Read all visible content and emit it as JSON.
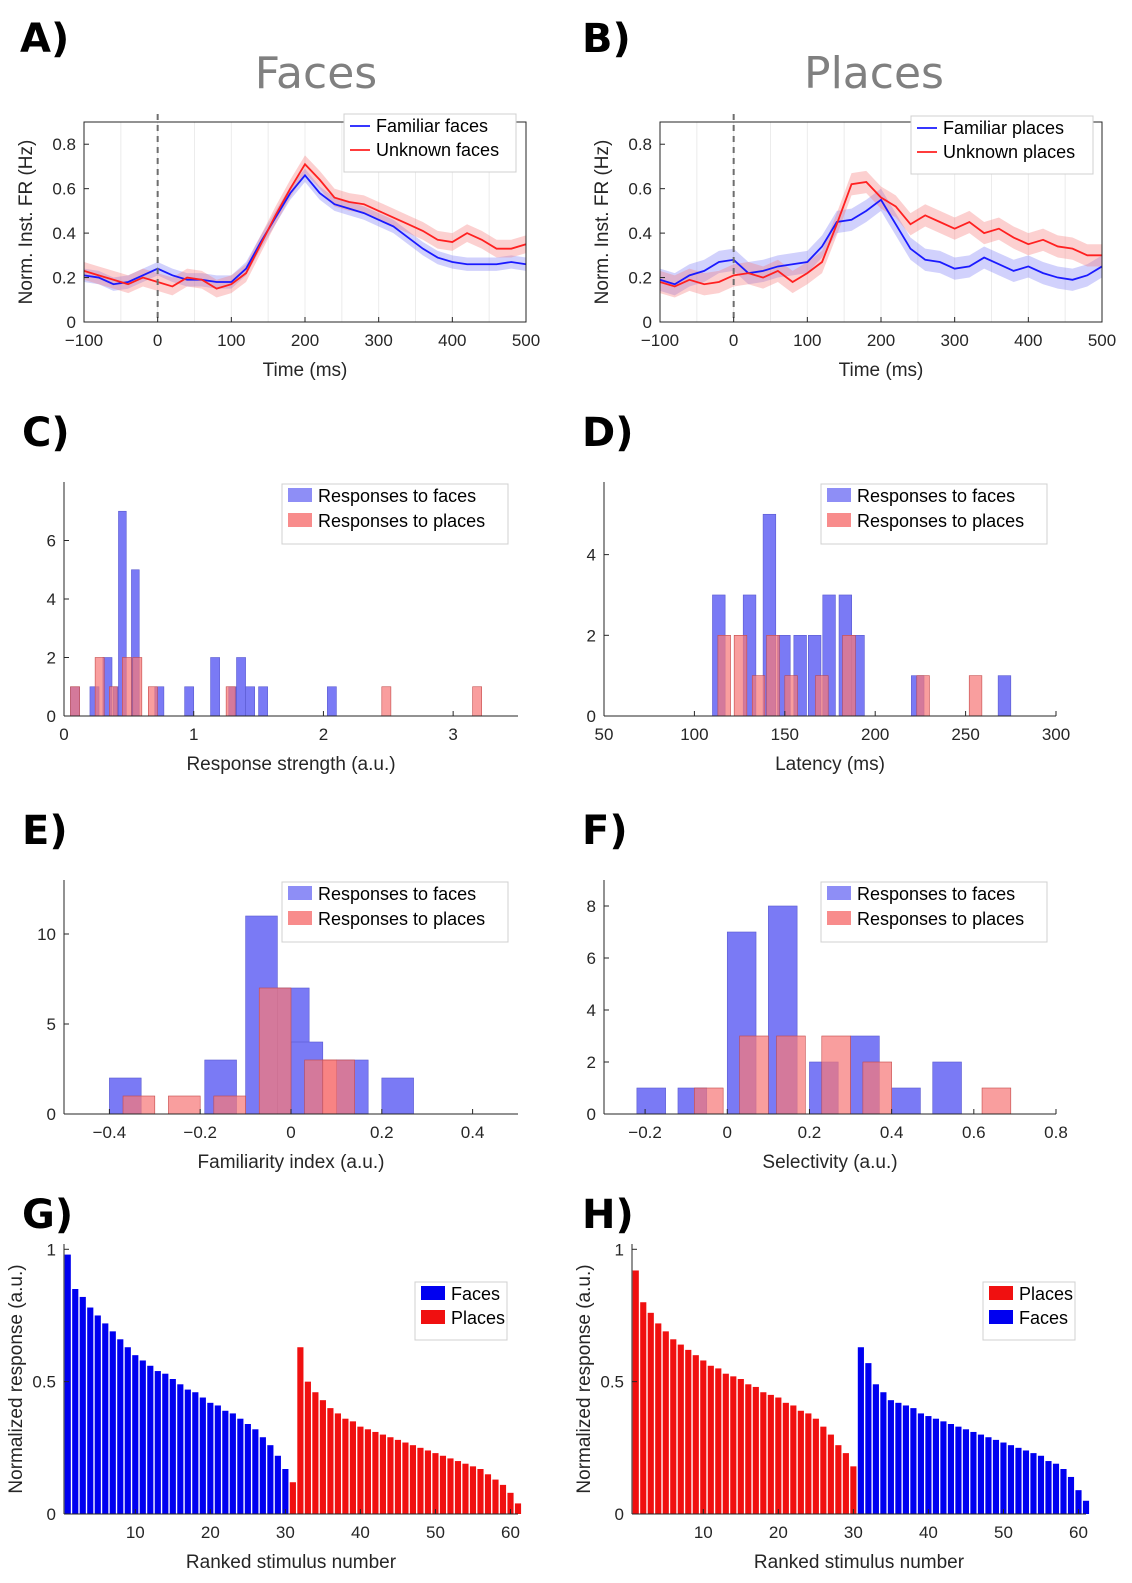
{
  "colors": {
    "familiar_line": "#1a1aff",
    "unknown_line": "#ff2020",
    "face_bar": "#7a7af5",
    "place_bar": "#f77878",
    "overlap_bar": "#a8467f",
    "faces_solid": "#0000f0",
    "places_solid": "#f01010",
    "blue_band": "#7a7af5",
    "red_band": "#f77878"
  },
  "chart_data": [
    {
      "panel": "A)",
      "type": "line",
      "title": "Faces",
      "xlabel": "Time (ms)",
      "ylabel": "Norm. Inst. FR (Hz)",
      "xlim": [
        -100,
        500
      ],
      "ylim": [
        0,
        0.9
      ],
      "xticks": [
        -100,
        0,
        100,
        200,
        300,
        400,
        500
      ],
      "yticks": [
        0,
        0.2,
        0.4,
        0.6,
        0.8
      ],
      "legend_position": "top-right",
      "x": [
        -100,
        -80,
        -60,
        -40,
        -20,
        0,
        20,
        40,
        60,
        80,
        100,
        120,
        140,
        160,
        180,
        200,
        220,
        240,
        260,
        280,
        300,
        320,
        340,
        360,
        380,
        400,
        420,
        440,
        460,
        480,
        500
      ],
      "series": [
        {
          "name": "Familiar  faces",
          "color_key": "familiar_line",
          "band_key": "blue_band",
          "band": 0.03,
          "values": [
            0.21,
            0.2,
            0.17,
            0.18,
            0.21,
            0.24,
            0.21,
            0.19,
            0.19,
            0.18,
            0.18,
            0.24,
            0.36,
            0.47,
            0.58,
            0.66,
            0.58,
            0.53,
            0.51,
            0.49,
            0.46,
            0.43,
            0.38,
            0.33,
            0.29,
            0.27,
            0.26,
            0.26,
            0.26,
            0.27,
            0.26
          ]
        },
        {
          "name": "Unknown faces",
          "color_key": "unknown_line",
          "band_key": "red_band",
          "band": 0.04,
          "values": [
            0.23,
            0.21,
            0.19,
            0.17,
            0.2,
            0.18,
            0.16,
            0.2,
            0.19,
            0.15,
            0.17,
            0.22,
            0.35,
            0.48,
            0.6,
            0.71,
            0.64,
            0.56,
            0.54,
            0.53,
            0.5,
            0.47,
            0.44,
            0.41,
            0.37,
            0.36,
            0.4,
            0.37,
            0.33,
            0.33,
            0.35
          ]
        }
      ]
    },
    {
      "panel": "B)",
      "type": "line",
      "title": "Places",
      "xlabel": "Time (ms)",
      "ylabel": "Norm. Inst. FR (Hz)",
      "xlim": [
        -100,
        500
      ],
      "ylim": [
        0,
        0.9
      ],
      "xticks": [
        -100,
        0,
        100,
        200,
        300,
        400,
        500
      ],
      "yticks": [
        0,
        0.2,
        0.4,
        0.6,
        0.8
      ],
      "legend_position": "top-right",
      "x": [
        -100,
        -80,
        -60,
        -40,
        -20,
        0,
        20,
        40,
        60,
        80,
        100,
        120,
        140,
        160,
        180,
        200,
        220,
        240,
        260,
        280,
        300,
        320,
        340,
        360,
        380,
        400,
        420,
        440,
        460,
        480,
        500
      ],
      "series": [
        {
          "name": "Familiar  places",
          "color_key": "familiar_line",
          "band_key": "blue_band",
          "band": 0.05,
          "values": [
            0.19,
            0.17,
            0.21,
            0.23,
            0.27,
            0.28,
            0.22,
            0.23,
            0.25,
            0.26,
            0.27,
            0.34,
            0.45,
            0.46,
            0.5,
            0.55,
            0.44,
            0.33,
            0.28,
            0.27,
            0.24,
            0.25,
            0.29,
            0.26,
            0.23,
            0.25,
            0.22,
            0.2,
            0.19,
            0.21,
            0.25
          ]
        },
        {
          "name": "Unknown places",
          "color_key": "unknown_line",
          "band_key": "red_band",
          "band": 0.05,
          "values": [
            0.18,
            0.16,
            0.19,
            0.17,
            0.18,
            0.21,
            0.22,
            0.2,
            0.23,
            0.18,
            0.22,
            0.27,
            0.44,
            0.62,
            0.63,
            0.56,
            0.52,
            0.44,
            0.48,
            0.45,
            0.42,
            0.45,
            0.4,
            0.42,
            0.38,
            0.35,
            0.37,
            0.34,
            0.33,
            0.3,
            0.3
          ]
        }
      ]
    },
    {
      "panel": "C)",
      "type": "histogram",
      "xlabel": "Response strength (a.u.)",
      "ylabel": "",
      "xlim": [
        0,
        3.5
      ],
      "ylim": [
        0,
        8.0
      ],
      "xticks": [
        0,
        1,
        2,
        3
      ],
      "yticks": [
        0,
        2,
        4,
        6
      ],
      "legend_position": "top-right",
      "series": [
        {
          "name": "Responses to faces",
          "color_key": "face_bar",
          "bins": [
            [
              0.05,
              0.12,
              1
            ],
            [
              0.2,
              0.27,
              1
            ],
            [
              0.3,
              0.37,
              2
            ],
            [
              0.38,
              0.44,
              1
            ],
            [
              0.42,
              0.48,
              7
            ],
            [
              0.52,
              0.58,
              5
            ],
            [
              0.7,
              0.77,
              1
            ],
            [
              0.93,
              1.0,
              1
            ],
            [
              1.13,
              1.2,
              2
            ],
            [
              1.27,
              1.33,
              1
            ],
            [
              1.33,
              1.4,
              2
            ],
            [
              1.4,
              1.47,
              1
            ],
            [
              1.5,
              1.57,
              1
            ],
            [
              2.03,
              2.1,
              1
            ]
          ]
        },
        {
          "name": "Responses to places",
          "color_key": "place_bar",
          "bins": [
            [
              0.05,
              0.12,
              1
            ],
            [
              0.24,
              0.31,
              2
            ],
            [
              0.35,
              0.41,
              1
            ],
            [
              0.45,
              0.52,
              2
            ],
            [
              0.53,
              0.6,
              2
            ],
            [
              0.65,
              0.72,
              1
            ],
            [
              1.25,
              1.32,
              1
            ],
            [
              2.45,
              2.52,
              1
            ],
            [
              3.15,
              3.22,
              1
            ]
          ]
        }
      ]
    },
    {
      "panel": "D)",
      "type": "histogram",
      "xlabel": "Latency (ms)",
      "ylabel": "",
      "xlim": [
        50,
        300
      ],
      "ylim": [
        0,
        5.8
      ],
      "xticks": [
        50,
        100,
        150,
        200,
        250,
        300
      ],
      "yticks": [
        0,
        2,
        4
      ],
      "legend_position": "top-right",
      "series": [
        {
          "name": "Responses to faces",
          "color_key": "face_bar",
          "bins": [
            [
              110,
              117,
              3
            ],
            [
              127,
              134,
              3
            ],
            [
              138,
              145,
              5
            ],
            [
              146,
              153,
              2
            ],
            [
              155,
              162,
              2
            ],
            [
              163,
              170,
              2
            ],
            [
              171,
              178,
              3
            ],
            [
              180,
              187,
              3
            ],
            [
              187,
              194,
              2
            ],
            [
              220,
              227,
              1
            ],
            [
              268,
              275,
              1
            ]
          ]
        },
        {
          "name": "Responses to places",
          "color_key": "place_bar",
          "bins": [
            [
              113,
              120,
              2
            ],
            [
              122,
              129,
              2
            ],
            [
              132,
              139,
              1
            ],
            [
              140,
              147,
              2
            ],
            [
              150,
              157,
              1
            ],
            [
              167,
              174,
              1
            ],
            [
              182,
              189,
              2
            ],
            [
              223,
              230,
              1
            ],
            [
              252,
              259,
              1
            ]
          ]
        }
      ]
    },
    {
      "panel": "E)",
      "type": "histogram",
      "xlabel": "Familiarity index (a.u.)",
      "ylabel": "",
      "xlim": [
        -0.5,
        0.5
      ],
      "ylim": [
        0,
        13
      ],
      "xticks": [
        -0.4,
        -0.2,
        0,
        0.2,
        0.4
      ],
      "yticks": [
        0,
        5,
        10
      ],
      "legend_position": "top-right",
      "series": [
        {
          "name": "Responses to faces",
          "color_key": "face_bar",
          "bins": [
            [
              -0.4,
              -0.33,
              2
            ],
            [
              -0.19,
              -0.12,
              3
            ],
            [
              -0.1,
              -0.03,
              11
            ],
            [
              -0.03,
              0.04,
              7
            ],
            [
              0.0,
              0.07,
              4
            ],
            [
              0.1,
              0.17,
              3
            ],
            [
              0.2,
              0.27,
              2
            ]
          ]
        },
        {
          "name": "Responses to places",
          "color_key": "place_bar",
          "bins": [
            [
              -0.37,
              -0.3,
              1
            ],
            [
              -0.27,
              -0.2,
              1
            ],
            [
              -0.17,
              -0.1,
              1
            ],
            [
              -0.07,
              0.0,
              7
            ],
            [
              0.03,
              0.1,
              3
            ],
            [
              0.07,
              0.14,
              3
            ]
          ]
        }
      ]
    },
    {
      "panel": "F)",
      "type": "histogram",
      "xlabel": "Selectivity (a.u.)",
      "ylabel": "",
      "xlim": [
        -0.3,
        0.8
      ],
      "ylim": [
        0,
        9
      ],
      "xticks": [
        -0.2,
        0,
        0.2,
        0.4,
        0.6,
        0.8
      ],
      "yticks": [
        0,
        2,
        4,
        6,
        8
      ],
      "legend_position": "top-right",
      "series": [
        {
          "name": "Responses to faces",
          "color_key": "face_bar",
          "bins": [
            [
              -0.22,
              -0.15,
              1
            ],
            [
              -0.12,
              -0.05,
              1
            ],
            [
              0.0,
              0.07,
              7
            ],
            [
              0.1,
              0.17,
              8
            ],
            [
              0.2,
              0.27,
              2
            ],
            [
              0.3,
              0.37,
              3
            ],
            [
              0.4,
              0.47,
              1
            ],
            [
              0.5,
              0.57,
              2
            ]
          ]
        },
        {
          "name": "Responses to places",
          "color_key": "place_bar",
          "bins": [
            [
              -0.08,
              -0.01,
              1
            ],
            [
              0.03,
              0.1,
              3
            ],
            [
              0.12,
              0.19,
              3
            ],
            [
              0.23,
              0.3,
              3
            ],
            [
              0.33,
              0.4,
              2
            ],
            [
              0.62,
              0.69,
              1
            ]
          ]
        }
      ]
    },
    {
      "panel": "G)",
      "type": "bar",
      "xlabel": "Ranked stimulus number",
      "ylabel": "Normalized response (a.u.)",
      "xlim": [
        0.5,
        61
      ],
      "ylim": [
        0,
        1.02
      ],
      "xticks": [
        10,
        20,
        30,
        40,
        50,
        60
      ],
      "yticks": [
        0,
        0.5,
        1
      ],
      "legend_position": "top-right",
      "series": [
        {
          "name": "Faces",
          "color_key": "faces_solid",
          "start": 1,
          "values": [
            0.98,
            0.85,
            0.82,
            0.78,
            0.75,
            0.72,
            0.69,
            0.66,
            0.63,
            0.6,
            0.58,
            0.56,
            0.54,
            0.53,
            0.51,
            0.49,
            0.47,
            0.46,
            0.44,
            0.42,
            0.41,
            0.39,
            0.38,
            0.36,
            0.34,
            0.32,
            0.29,
            0.26,
            0.22,
            0.17
          ]
        },
        {
          "name": "Places",
          "color_key": "places_solid",
          "start": 31,
          "values": [
            0.12,
            0.63,
            0.5,
            0.46,
            0.43,
            0.4,
            0.38,
            0.36,
            0.35,
            0.33,
            0.32,
            0.31,
            0.3,
            0.29,
            0.28,
            0.27,
            0.26,
            0.25,
            0.24,
            0.23,
            0.22,
            0.21,
            0.2,
            0.19,
            0.18,
            0.17,
            0.15,
            0.13,
            0.11,
            0.08,
            0.04,
            0.01
          ]
        }
      ]
    },
    {
      "panel": "H)",
      "type": "bar",
      "xlabel": "Ranked stimulus number",
      "ylabel": "Normalized response (a.u.)",
      "xlim": [
        0.5,
        61
      ],
      "ylim": [
        0,
        1.02
      ],
      "xticks": [
        10,
        20,
        30,
        40,
        50,
        60
      ],
      "yticks": [
        0,
        0.5,
        1
      ],
      "legend_position": "top-right",
      "series": [
        {
          "name": "Places",
          "color_key": "places_solid",
          "start": 1,
          "values": [
            0.92,
            0.8,
            0.76,
            0.72,
            0.69,
            0.66,
            0.64,
            0.62,
            0.6,
            0.58,
            0.56,
            0.55,
            0.53,
            0.52,
            0.51,
            0.49,
            0.48,
            0.46,
            0.45,
            0.44,
            0.42,
            0.41,
            0.39,
            0.38,
            0.36,
            0.33,
            0.3,
            0.26,
            0.23,
            0.18
          ]
        },
        {
          "name": "Faces",
          "color_key": "faces_solid",
          "start": 31,
          "values": [
            0.63,
            0.57,
            0.49,
            0.46,
            0.43,
            0.42,
            0.41,
            0.4,
            0.38,
            0.37,
            0.36,
            0.35,
            0.34,
            0.33,
            0.32,
            0.31,
            0.3,
            0.29,
            0.28,
            0.27,
            0.26,
            0.25,
            0.24,
            0.23,
            0.22,
            0.2,
            0.19,
            0.17,
            0.14,
            0.09,
            0.05,
            0.02
          ]
        }
      ]
    }
  ]
}
